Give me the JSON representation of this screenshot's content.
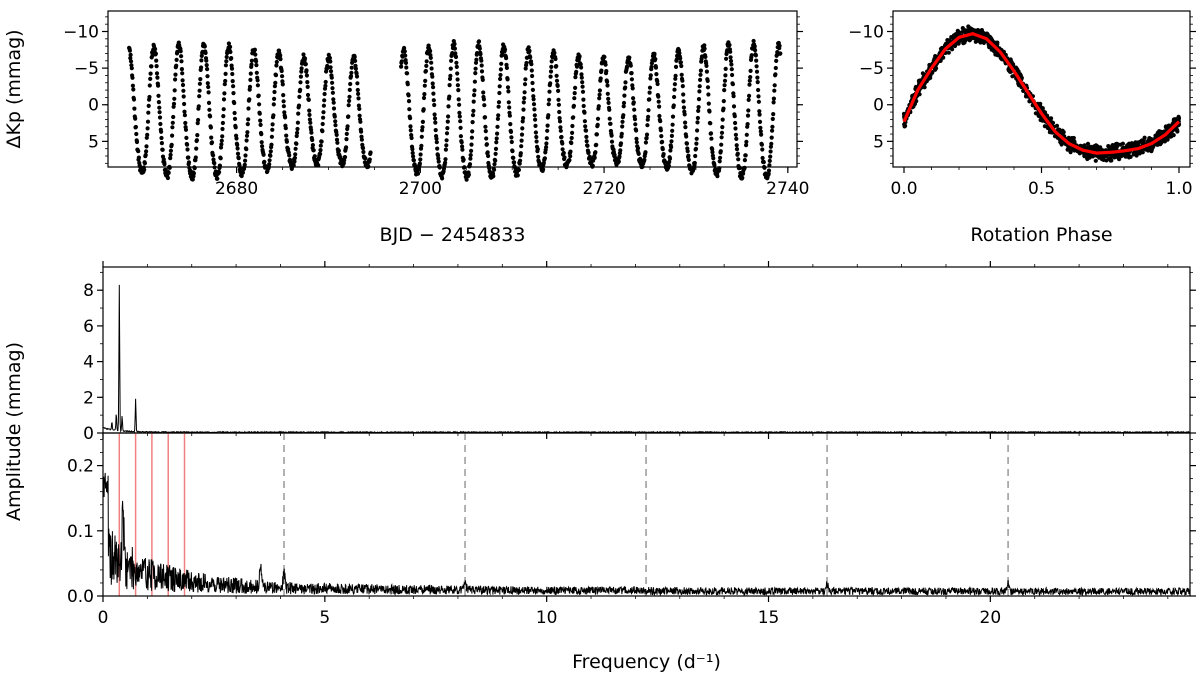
{
  "chart_data": [
    {
      "type": "scatter",
      "panel": "light-curve",
      "xlabel": "BJD − 2454833",
      "ylabel": "ΔKp (mmag)",
      "xlim": [
        2666,
        2741
      ],
      "ylim": [
        8.5,
        -12.8
      ],
      "y_inverted": true,
      "xticks": [
        2680,
        2700,
        2720,
        2740
      ],
      "yticks": [
        -10,
        -5,
        0,
        5
      ],
      "ytick_labels": [
        "−10",
        "−5",
        "0",
        "5"
      ],
      "segments": [
        [
          2668.3,
          2694.6
        ],
        [
          2697.9,
          2739.2
        ]
      ],
      "rotation_period_days": 2.72,
      "semi_amplitude_mmag": 8.1,
      "mean_mmag": -1.6,
      "marker_color": "#000000",
      "grid": false
    },
    {
      "type": "scatter",
      "panel": "phase-folded",
      "xlabel": "Rotation Phase",
      "ylabel": "",
      "xlim": [
        -0.04,
        1.04
      ],
      "ylim": [
        8.5,
        -12.8
      ],
      "y_inverted": true,
      "xticks": [
        0.0,
        0.5,
        1.0
      ],
      "xtick_labels": [
        "0.0",
        "0.5",
        "1.0"
      ],
      "yticks": [
        -10,
        -5,
        0,
        5
      ],
      "ytick_labels": [
        "−10",
        "−5",
        "0",
        "5"
      ],
      "model_points": [
        {
          "x": 0.0,
          "y": 2.3
        },
        {
          "x": 0.05,
          "y": -2.0
        },
        {
          "x": 0.1,
          "y": -5.0
        },
        {
          "x": 0.15,
          "y": -7.6
        },
        {
          "x": 0.2,
          "y": -9.2
        },
        {
          "x": 0.25,
          "y": -9.7
        },
        {
          "x": 0.3,
          "y": -9.0
        },
        {
          "x": 0.35,
          "y": -7.2
        },
        {
          "x": 0.4,
          "y": -4.6
        },
        {
          "x": 0.45,
          "y": -1.7
        },
        {
          "x": 0.5,
          "y": 1.2
        },
        {
          "x": 0.55,
          "y": 3.7
        },
        {
          "x": 0.6,
          "y": 5.3
        },
        {
          "x": 0.65,
          "y": 6.2
        },
        {
          "x": 0.7,
          "y": 6.6
        },
        {
          "x": 0.75,
          "y": 6.5
        },
        {
          "x": 0.8,
          "y": 6.3
        },
        {
          "x": 0.85,
          "y": 6.0
        },
        {
          "x": 0.9,
          "y": 5.3
        },
        {
          "x": 0.95,
          "y": 4.1
        },
        {
          "x": 1.0,
          "y": 2.3
        }
      ],
      "marker_color": "#000000",
      "model_color": "#ff0000",
      "grid": false
    },
    {
      "type": "line",
      "panel": "amplitude-spectrum-full",
      "xlabel": "",
      "ylabel": "Amplitude (mmag)",
      "xlim": [
        0,
        24.5
      ],
      "ylim": [
        0,
        9.3
      ],
      "yticks": [
        0,
        2,
        4,
        6,
        8
      ],
      "peaks": [
        {
          "x": 0.367,
          "y": 8.2
        },
        {
          "x": 0.735,
          "y": 1.85
        },
        {
          "x": 0.3,
          "y": 0.95
        },
        {
          "x": 0.43,
          "y": 0.85
        },
        {
          "x": 0.2,
          "y": 0.45
        }
      ],
      "noise_level_mmag": 0.05,
      "line_color": "#000000",
      "grid": false
    },
    {
      "type": "line",
      "panel": "amplitude-spectrum-zoom",
      "xlabel": "Frequency (d⁻¹)",
      "ylabel": "Amplitude (mmag)",
      "xlim": [
        0,
        24.5
      ],
      "ylim": [
        0,
        0.25
      ],
      "xticks": [
        0,
        5,
        10,
        15,
        20
      ],
      "yticks": [
        0.0,
        0.1,
        0.2
      ],
      "ytick_labels": [
        "0.0",
        "0.1",
        "0.2"
      ],
      "rotation_harmonics": [
        0.367,
        0.735,
        1.102,
        1.47,
        1.837
      ],
      "harmonic_line_color": "#f08080",
      "dashed_markers": [
        4.08,
        8.16,
        12.24,
        16.32,
        20.4
      ],
      "dashed_line_color": "#aaaaaa",
      "features": [
        {
          "x": 0.05,
          "y": 0.18
        },
        {
          "x": 0.1,
          "y": 0.16
        },
        {
          "x": 0.2,
          "y": 0.14
        },
        {
          "x": 0.45,
          "y": 0.125
        },
        {
          "x": 3.55,
          "y": 0.062
        },
        {
          "x": 4.08,
          "y": 0.04
        },
        {
          "x": 8.16,
          "y": 0.025
        },
        {
          "x": 16.32,
          "y": 0.02
        },
        {
          "x": 20.4,
          "y": 0.02
        }
      ],
      "line_color": "#000000",
      "grid": false
    }
  ]
}
